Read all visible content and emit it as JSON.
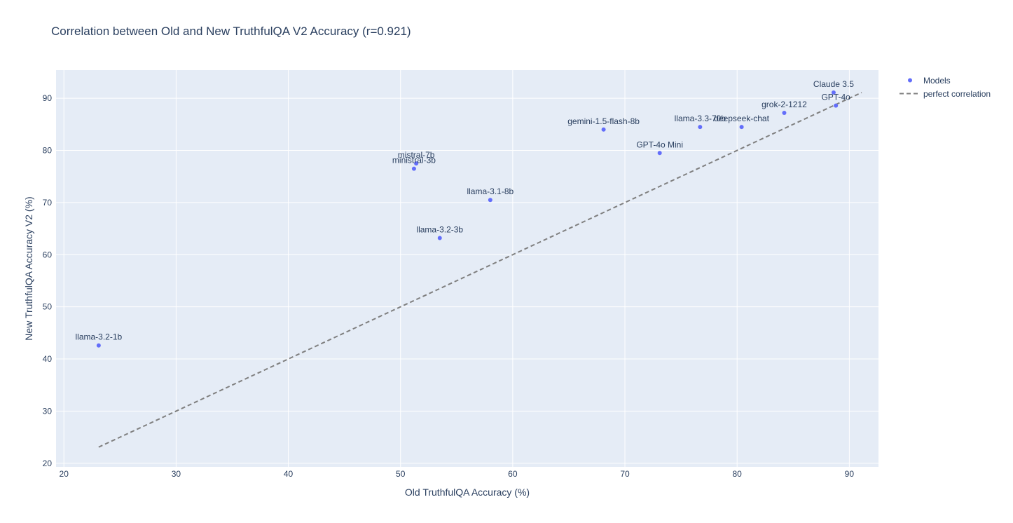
{
  "chart_data": {
    "type": "scatter",
    "title": "Correlation between Old and New TruthfulQA V2 Accuracy (r=0.921)",
    "xlabel": "Old TruthfulQA Accuracy (%)",
    "ylabel": "New TruthfulQA Accuracy V2 (%)",
    "xlim": [
      19.3,
      92.6
    ],
    "ylim": [
      19.3,
      95.4
    ],
    "xticks": [
      20,
      30,
      40,
      50,
      60,
      70,
      80,
      90
    ],
    "yticks": [
      20,
      30,
      40,
      50,
      60,
      70,
      80,
      90
    ],
    "grid": true,
    "legend_position": "top-right",
    "series": [
      {
        "name": "Models",
        "kind": "markers",
        "color": "#636efa",
        "points": [
          {
            "label": "llama-3.2-1b",
            "x": 23.1,
            "y": 42.6
          },
          {
            "label": "mistral-7b",
            "x": 51.4,
            "y": 77.5
          },
          {
            "label": "ministral-3b",
            "x": 51.2,
            "y": 76.5
          },
          {
            "label": "llama-3.2-3b",
            "x": 53.5,
            "y": 63.2
          },
          {
            "label": "llama-3.1-8b",
            "x": 58.0,
            "y": 70.5
          },
          {
            "label": "gemini-1.5-flash-8b",
            "x": 68.1,
            "y": 84.0
          },
          {
            "label": "GPT-4o Mini",
            "x": 73.1,
            "y": 79.5
          },
          {
            "label": "llama-3.3-70b",
            "x": 76.7,
            "y": 84.5
          },
          {
            "label": "deepseek-chat",
            "x": 80.4,
            "y": 84.5
          },
          {
            "label": "grok-2-1212",
            "x": 84.2,
            "y": 87.2
          },
          {
            "label": "Claude 3.5",
            "x": 88.6,
            "y": 91.1
          },
          {
            "label": "GPT-4o",
            "x": 88.8,
            "y": 88.6
          }
        ]
      },
      {
        "name": "perfect correlation",
        "kind": "dashed-line",
        "color": "#7f7f7f",
        "points": [
          {
            "x": 23.1,
            "y": 23.1
          },
          {
            "x": 91.1,
            "y": 91.1
          }
        ]
      }
    ]
  }
}
